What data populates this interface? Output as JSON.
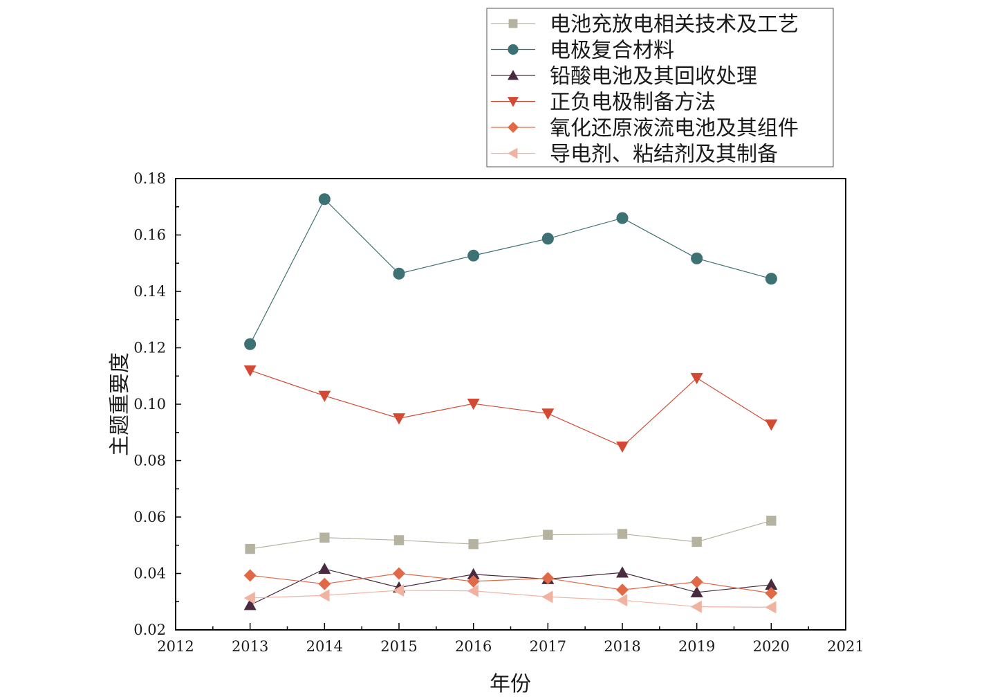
{
  "chart_data": {
    "type": "line",
    "title": "",
    "xlabel": "年份",
    "ylabel": "主题重要度",
    "xlim": [
      2012,
      2021
    ],
    "ylim": [
      0.02,
      0.18
    ],
    "xticks": [
      "2012",
      "2013",
      "2014",
      "2015",
      "2016",
      "2017",
      "2018",
      "2019",
      "2020",
      "2021"
    ],
    "yticks": [
      "0.02",
      "0.04",
      "0.06",
      "0.08",
      "0.10",
      "0.12",
      "0.14",
      "0.16",
      "0.18"
    ],
    "grid": false,
    "legend_position": "top-right, outside plot area",
    "x": [
      2013,
      2014,
      2015,
      2016,
      2017,
      2018,
      2019,
      2020
    ],
    "series": [
      {
        "name": "电池充放电相关技术及工艺",
        "marker": "square",
        "color": "#b5b3a0",
        "values": [
          0.0487,
          0.0527,
          0.0518,
          0.0504,
          0.0537,
          0.054,
          0.0512,
          0.0587
        ]
      },
      {
        "name": "电极复合材料",
        "marker": "circle",
        "color": "#3d7173",
        "values": [
          0.1213,
          0.1727,
          0.1463,
          0.1527,
          0.1587,
          0.166,
          0.1517,
          0.1445
        ]
      },
      {
        "name": "铅酸电池及其回收处理",
        "marker": "triangle-up",
        "color": "#4a2a3f",
        "values": [
          0.0288,
          0.0416,
          0.035,
          0.0397,
          0.038,
          0.0403,
          0.0333,
          0.036
        ]
      },
      {
        "name": "正负电极制备方法",
        "marker": "triangle-down",
        "color": "#d24a33",
        "values": [
          0.112,
          0.103,
          0.095,
          0.1002,
          0.0967,
          0.085,
          0.1093,
          0.0928
        ]
      },
      {
        "name": "氧化还原液流电池及其组件",
        "marker": "diamond",
        "color": "#e06a47",
        "values": [
          0.0393,
          0.0363,
          0.04,
          0.0372,
          0.0383,
          0.0342,
          0.037,
          0.033
        ]
      },
      {
        "name": "导电剂、粘结剂及其制备",
        "marker": "triangle-left",
        "color": "#f0b3a2",
        "values": [
          0.0313,
          0.0322,
          0.034,
          0.0338,
          0.0317,
          0.0305,
          0.0282,
          0.028
        ]
      }
    ]
  }
}
